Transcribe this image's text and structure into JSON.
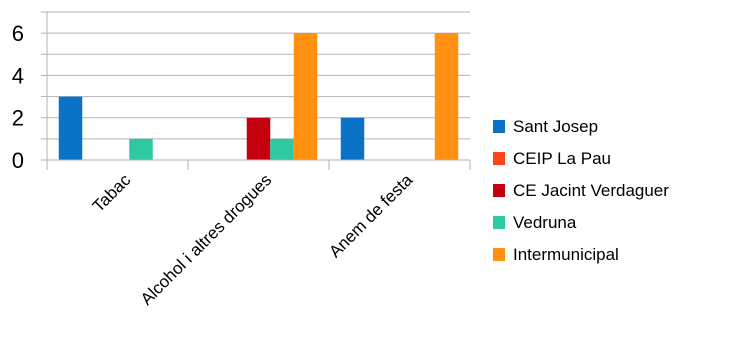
{
  "chart_data": {
    "type": "bar",
    "categories": [
      "Tabac",
      "Alcohol i altres drogues",
      "Anem de festa"
    ],
    "series": [
      {
        "name": "Sant Josep",
        "color": "#0a73c8",
        "values": [
          3,
          0,
          2
        ]
      },
      {
        "name": "CEIP La Pau",
        "color": "#ff4518",
        "values": [
          0,
          0,
          0
        ]
      },
      {
        "name": "CE Jacint Verdaguer",
        "color": "#c4000f",
        "values": [
          0,
          2,
          0
        ]
      },
      {
        "name": "Vedruna",
        "color": "#2ec9a0",
        "values": [
          1,
          1,
          0
        ]
      },
      {
        "name": "Intermunicipal",
        "color": "#ff9010",
        "values": [
          0,
          6,
          6
        ]
      }
    ],
    "yticks": [
      0,
      2,
      4,
      6
    ],
    "ylim": [
      0,
      7
    ],
    "grid": true,
    "legend": "right",
    "title": "",
    "xlabel": "",
    "ylabel": ""
  }
}
